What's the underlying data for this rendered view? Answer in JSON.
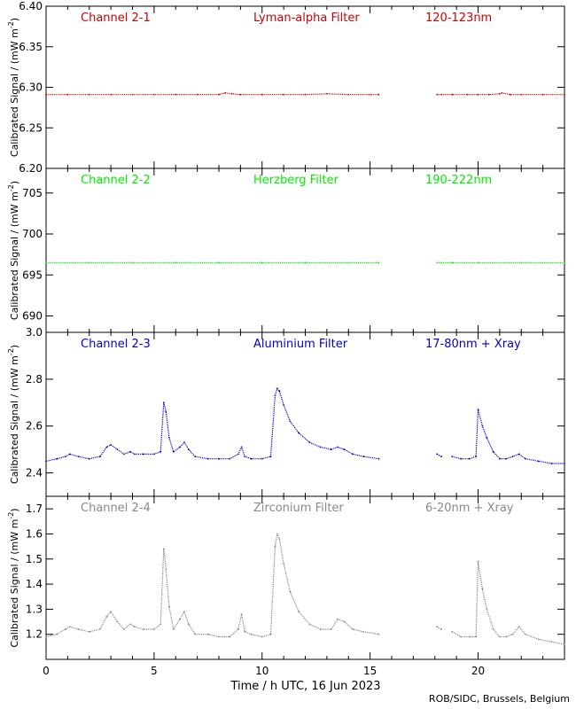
{
  "chart_data": {
    "type": "scatter",
    "xlabel": "Time / h UTC, 16 Jun 2023",
    "credit": "ROB/SIDC, Brussels, Belgium",
    "x_range": [
      0,
      24
    ],
    "x_ticks": [
      0,
      5,
      10,
      15,
      20
    ],
    "panels": [
      {
        "title": "Channel 2-1",
        "filter": "Lyman-alpha Filter",
        "band": "120-123nm",
        "color": "#cc0000",
        "ylabel": "Calibrated Signal / (mW m",
        "ylabel_exp": "-2",
        "ylim": [
          6.2,
          6.4
        ],
        "yticks": [
          "6.20",
          "6.25",
          "6.30",
          "6.35",
          "6.40"
        ],
        "series": [
          {
            "x": [
              0.0,
              1.0,
              2.0,
              3.0,
              4.0,
              5.0,
              6.0,
              7.0,
              8.0,
              8.3,
              8.6,
              9.0,
              10.0,
              11.0,
              12.0,
              13.0,
              14.0,
              15.0,
              15.4
            ],
            "y": [
              6.291,
              6.291,
              6.291,
              6.291,
              6.291,
              6.291,
              6.291,
              6.291,
              6.291,
              6.293,
              6.292,
              6.291,
              6.291,
              6.291,
              6.291,
              6.292,
              6.291,
              6.291,
              6.291
            ]
          },
          {
            "x": [
              18.1,
              18.3,
              18.8,
              19.5,
              20.0,
              20.5,
              21.0,
              21.1,
              21.5,
              22.0,
              23.0,
              24.0
            ],
            "y": [
              6.291,
              6.291,
              6.291,
              6.291,
              6.291,
              6.291,
              6.292,
              6.293,
              6.291,
              6.291,
              6.291,
              6.291
            ]
          }
        ]
      },
      {
        "title": "Channel 2-2",
        "filter": "Herzberg Filter",
        "band": "190-222nm",
        "color": "#00ee00",
        "ylabel": "Calibrated Signal / (mW m",
        "ylabel_exp": "-2",
        "ylim": [
          688,
          708
        ],
        "yticks": [
          "690",
          "695",
          "700",
          "705"
        ],
        "series": [
          {
            "x": [
              0.0,
              2.0,
              4.0,
              6.0,
              8.0,
              10.0,
              12.0,
              14.0,
              15.4
            ],
            "y": [
              696.5,
              696.5,
              696.5,
              696.5,
              696.5,
              696.5,
              696.5,
              696.5,
              696.5
            ]
          },
          {
            "x": [
              18.1,
              18.3,
              18.8,
              20.0,
              22.0,
              24.0
            ],
            "y": [
              696.5,
              696.5,
              696.5,
              696.5,
              696.5,
              696.5
            ]
          }
        ]
      },
      {
        "title": "Channel 2-3",
        "filter": "Aluminium Filter",
        "band": "17-80nm + Xray",
        "color": "#0000cc",
        "ylabel": "Calibrated Signal / (mW m",
        "ylabel_exp": "-2",
        "ylim": [
          2.3,
          3.0
        ],
        "yticks": [
          "2.4",
          "2.6",
          "2.8",
          "3.0"
        ],
        "series": [
          {
            "x": [
              0.0,
              0.5,
              0.9,
              1.1,
              1.5,
              2.0,
              2.5,
              2.8,
              3.0,
              3.3,
              3.6,
              3.9,
              4.1,
              4.5,
              5.0,
              5.3,
              5.45,
              5.55,
              5.7,
              5.9,
              6.2,
              6.4,
              6.6,
              6.9,
              7.5,
              8.0,
              8.5,
              8.9,
              9.05,
              9.2,
              9.5,
              10.0,
              10.4,
              10.6,
              10.7,
              10.8,
              11.0,
              11.3,
              11.7,
              12.2,
              12.7,
              13.2,
              13.5,
              13.8,
              14.2,
              14.7,
              15.4
            ],
            "y": [
              2.45,
              2.46,
              2.47,
              2.48,
              2.47,
              2.46,
              2.47,
              2.51,
              2.52,
              2.5,
              2.48,
              2.49,
              2.48,
              2.48,
              2.48,
              2.49,
              2.7,
              2.66,
              2.55,
              2.49,
              2.51,
              2.53,
              2.5,
              2.47,
              2.46,
              2.46,
              2.46,
              2.48,
              2.51,
              2.47,
              2.46,
              2.46,
              2.47,
              2.73,
              2.76,
              2.75,
              2.69,
              2.62,
              2.57,
              2.53,
              2.51,
              2.5,
              2.51,
              2.5,
              2.48,
              2.47,
              2.46
            ]
          },
          {
            "x": [
              18.1,
              18.3
            ],
            "y": [
              2.48,
              2.47
            ]
          },
          {
            "x": [
              18.8,
              19.2,
              19.6,
              19.9,
              20.0,
              20.2,
              20.4,
              20.7,
              21.0,
              21.3,
              21.6,
              21.9,
              22.2,
              22.8,
              23.4,
              24.0
            ],
            "y": [
              2.47,
              2.46,
              2.46,
              2.47,
              2.67,
              2.6,
              2.55,
              2.49,
              2.46,
              2.46,
              2.47,
              2.48,
              2.46,
              2.45,
              2.44,
              2.44
            ]
          }
        ]
      },
      {
        "title": "Channel 2-4",
        "filter": "Zirconium Filter",
        "band": "6-20nm + Xray",
        "color": "#888888",
        "ylabel": "Calibrated Signal / (mW m",
        "ylabel_exp": "-2",
        "ylim": [
          1.1,
          1.75
        ],
        "yticks": [
          "1.2",
          "1.3",
          "1.4",
          "1.5",
          "1.6",
          "1.7"
        ],
        "series": [
          {
            "x": [
              0.0,
              0.5,
              0.9,
              1.1,
              1.5,
              2.0,
              2.5,
              2.8,
              3.0,
              3.3,
              3.6,
              3.9,
              4.1,
              4.5,
              5.0,
              5.3,
              5.45,
              5.55,
              5.7,
              5.9,
              6.2,
              6.4,
              6.6,
              6.9,
              7.5,
              8.0,
              8.5,
              8.9,
              9.05,
              9.2,
              9.5,
              10.0,
              10.4,
              10.6,
              10.7,
              10.8,
              11.0,
              11.3,
              11.7,
              12.2,
              12.7,
              13.2,
              13.5,
              13.8,
              14.2,
              14.7,
              15.4
            ],
            "y": [
              1.19,
              1.2,
              1.22,
              1.23,
              1.22,
              1.21,
              1.22,
              1.27,
              1.29,
              1.25,
              1.22,
              1.24,
              1.23,
              1.22,
              1.22,
              1.24,
              1.54,
              1.46,
              1.31,
              1.22,
              1.26,
              1.29,
              1.24,
              1.2,
              1.2,
              1.19,
              1.19,
              1.22,
              1.28,
              1.21,
              1.2,
              1.19,
              1.2,
              1.55,
              1.6,
              1.58,
              1.48,
              1.37,
              1.29,
              1.24,
              1.22,
              1.22,
              1.26,
              1.25,
              1.22,
              1.21,
              1.2
            ]
          },
          {
            "x": [
              18.1,
              18.3
            ],
            "y": [
              1.23,
              1.22
            ]
          },
          {
            "x": [
              18.8,
              19.2,
              19.6,
              19.9,
              20.0,
              20.2,
              20.4,
              20.7,
              21.0,
              21.3,
              21.6,
              21.9,
              22.2,
              22.8,
              23.4,
              24.0
            ],
            "y": [
              1.21,
              1.19,
              1.19,
              1.19,
              1.49,
              1.38,
              1.3,
              1.22,
              1.19,
              1.19,
              1.2,
              1.23,
              1.2,
              1.18,
              1.17,
              1.16
            ]
          }
        ]
      }
    ]
  }
}
